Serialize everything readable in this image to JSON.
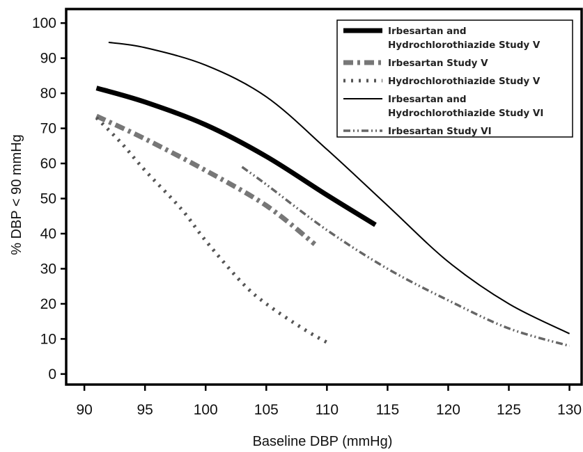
{
  "chart_data": {
    "type": "line",
    "xlabel": "Baseline DBP (mmHg)",
    "ylabel": "% DBP < 90 mmHg",
    "xlim": [
      88.5,
      131
    ],
    "ylim": [
      -3,
      104
    ],
    "x_ticks": [
      90,
      95,
      100,
      105,
      110,
      115,
      120,
      125,
      130
    ],
    "y_ticks": [
      0,
      10,
      20,
      30,
      40,
      50,
      60,
      70,
      80,
      90,
      100
    ],
    "grid": false,
    "legend_position": "top-right",
    "series": [
      {
        "name": "Irbesartan and Hydrochlorothiazide Study V",
        "legend_lines": [
          "Irbesartan and",
          "Hydrochlorothiazide Study V"
        ],
        "style": "thick-solid",
        "color": "#000000",
        "points": [
          [
            91,
            81.5
          ],
          [
            95,
            77.5
          ],
          [
            100,
            71
          ],
          [
            105,
            62
          ],
          [
            110,
            51
          ],
          [
            114,
            42.5
          ]
        ]
      },
      {
        "name": "Irbesartan Study V",
        "legend_lines": [
          "Irbesartan Study V"
        ],
        "style": "thick-dash-dot",
        "color": "#777777",
        "points": [
          [
            91,
            73.5
          ],
          [
            95,
            67
          ],
          [
            100,
            58
          ],
          [
            105,
            48
          ],
          [
            109,
            37
          ]
        ]
      },
      {
        "name": "Hydrochlorothiazide Study V",
        "legend_lines": [
          "Hydrochlorothiazide Study V"
        ],
        "style": "dotted",
        "color": "#555555",
        "points": [
          [
            91,
            73
          ],
          [
            93,
            66
          ],
          [
            95,
            58
          ],
          [
            98,
            47
          ],
          [
            100,
            38
          ],
          [
            103,
            26
          ],
          [
            105,
            20
          ],
          [
            108,
            13
          ],
          [
            110,
            9
          ]
        ]
      },
      {
        "name": "Irbesartan and Hydrochlorothiazide Study VI",
        "legend_lines": [
          "Irbesartan and",
          "Hydrochlorothiazide Study VI"
        ],
        "style": "thin-solid",
        "color": "#000000",
        "points": [
          [
            92,
            94.5
          ],
          [
            95,
            93
          ],
          [
            100,
            88
          ],
          [
            105,
            79
          ],
          [
            110,
            64
          ],
          [
            115,
            48
          ],
          [
            120,
            32
          ],
          [
            125,
            20
          ],
          [
            130,
            11.5
          ]
        ]
      },
      {
        "name": "Irbesartan Study VI",
        "legend_lines": [
          "Irbesartan Study VI"
        ],
        "style": "dash-dot-dot",
        "color": "#666666",
        "points": [
          [
            103,
            59
          ],
          [
            105,
            54
          ],
          [
            110,
            41
          ],
          [
            115,
            30
          ],
          [
            120,
            21
          ],
          [
            125,
            13
          ],
          [
            130,
            8
          ]
        ]
      }
    ]
  }
}
